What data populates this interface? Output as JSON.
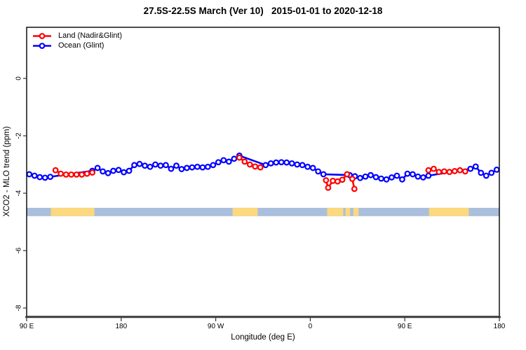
{
  "chart_data": {
    "type": "line",
    "title": "27.5S-22.5S March (Ver 10)   2015-01-01 to 2020-12-18",
    "xlabel": "Longitude (deg E)",
    "ylabel": "XCO2 - MLO trend (ppm)",
    "x_axis": {
      "range": [
        90,
        540
      ],
      "ticks": [
        90,
        180,
        270,
        360,
        450,
        540
      ],
      "tick_labels": [
        "90 E",
        "180",
        "90 W",
        "0",
        "90 E",
        "180"
      ],
      "note": "longitude wraps eastward: 90E to 180 to 90W to 0 to 90E to 180"
    },
    "y_axis": {
      "range": [
        -8.3,
        1.8
      ],
      "ticks": [
        0,
        -2,
        -4,
        -6,
        -8
      ],
      "tick_labels": [
        "0",
        "-2",
        "-4",
        "-6",
        "-8"
      ]
    },
    "legend": {
      "position": "top-left",
      "entries": [
        {
          "label": "Land (Nadir&Glint)",
          "color": "#FF0000"
        },
        {
          "label": "Ocean (Glint)",
          "color": "#0000FF"
        }
      ]
    },
    "series": [
      {
        "name": "Land (Nadir&Glint)",
        "color": "#FF0000",
        "marker": "open-circle",
        "segments": [
          [
            [
              117.5,
              -3.2
            ],
            [
              122.5,
              -3.32
            ],
            [
              127.5,
              -3.35
            ],
            [
              132.5,
              -3.35
            ],
            [
              137.5,
              -3.35
            ],
            [
              142.5,
              -3.35
            ],
            [
              147.5,
              -3.32
            ],
            [
              152.5,
              -3.28
            ]
          ],
          [
            [
              292.5,
              -2.76
            ],
            [
              297.5,
              -2.9
            ],
            [
              302.5,
              -3.0
            ],
            [
              307.5,
              -3.07
            ],
            [
              312.5,
              -3.1
            ]
          ],
          [
            [
              375,
              -3.55
            ],
            [
              377,
              -3.81
            ],
            [
              381.5,
              -3.57
            ],
            [
              386,
              -3.59
            ],
            [
              390.5,
              -3.53
            ],
            [
              395,
              -3.34
            ],
            [
              400,
              -3.5
            ],
            [
              402,
              -3.85
            ]
          ],
          [
            [
              472.5,
              -3.2
            ],
            [
              477.5,
              -3.15
            ],
            [
              482.5,
              -3.26
            ],
            [
              487.5,
              -3.24
            ],
            [
              492.5,
              -3.26
            ],
            [
              497.5,
              -3.23
            ],
            [
              502.5,
              -3.2
            ],
            [
              507.5,
              -3.24
            ]
          ]
        ]
      },
      {
        "name": "Ocean (Glint)",
        "color": "#0000FF",
        "marker": "open-circle",
        "segments": [
          [
            [
              92.5,
              -3.34
            ],
            [
              97.5,
              -3.39
            ],
            [
              102.5,
              -3.44
            ],
            [
              107.5,
              -3.46
            ],
            [
              112.5,
              -3.43
            ],
            [
              152.5,
              -3.22
            ],
            [
              157.5,
              -3.12
            ],
            [
              162.5,
              -3.24
            ],
            [
              167.5,
              -3.3
            ],
            [
              172.5,
              -3.22
            ],
            [
              177.5,
              -3.19
            ],
            [
              182.5,
              -3.27
            ],
            [
              187.5,
              -3.22
            ],
            [
              192.5,
              -3.02
            ],
            [
              197.5,
              -2.98
            ],
            [
              202.5,
              -3.04
            ],
            [
              207.5,
              -3.08
            ],
            [
              212.5,
              -3.0
            ],
            [
              217.5,
              -3.04
            ],
            [
              222.5,
              -3.02
            ],
            [
              227.5,
              -3.15
            ],
            [
              232.5,
              -3.04
            ],
            [
              237.5,
              -3.16
            ],
            [
              242.5,
              -3.12
            ],
            [
              247.5,
              -3.1
            ],
            [
              252.5,
              -3.08
            ],
            [
              257.5,
              -3.1
            ],
            [
              262.5,
              -3.08
            ],
            [
              267.5,
              -3.02
            ],
            [
              272.5,
              -2.92
            ],
            [
              277.5,
              -2.85
            ],
            [
              282.5,
              -2.9
            ],
            [
              287.5,
              -2.8
            ],
            [
              292.5,
              -2.69
            ],
            [
              317.5,
              -3.02
            ],
            [
              322.5,
              -2.96
            ],
            [
              327.5,
              -2.93
            ],
            [
              332.5,
              -2.92
            ],
            [
              337.5,
              -2.93
            ],
            [
              342.5,
              -2.96
            ],
            [
              347.5,
              -3.0
            ],
            [
              352.5,
              -3.02
            ],
            [
              357.5,
              -3.08
            ],
            [
              362.5,
              -3.12
            ],
            [
              367.5,
              -3.24
            ],
            [
              372.5,
              -3.34
            ],
            [
              397.5,
              -3.37
            ],
            [
              402.5,
              -3.41
            ],
            [
              407.5,
              -3.47
            ],
            [
              412.5,
              -3.42
            ],
            [
              417.5,
              -3.37
            ],
            [
              422.5,
              -3.44
            ],
            [
              427.5,
              -3.49
            ],
            [
              432.5,
              -3.52
            ],
            [
              437.5,
              -3.45
            ],
            [
              442.5,
              -3.39
            ],
            [
              447.5,
              -3.52
            ],
            [
              452.5,
              -3.32
            ],
            [
              457.5,
              -3.34
            ],
            [
              462.5,
              -3.42
            ],
            [
              467.5,
              -3.45
            ],
            [
              472.5,
              -3.39
            ],
            [
              512.5,
              -3.15
            ],
            [
              517.5,
              -3.07
            ],
            [
              522.5,
              -3.29
            ],
            [
              527.5,
              -3.39
            ],
            [
              532.5,
              -3.29
            ],
            [
              537.5,
              -3.18
            ]
          ]
        ]
      }
    ],
    "land_ocean_strip": {
      "y_top": -4.51,
      "y_bottom": -4.8,
      "ocean_color": "#AABFDC",
      "land_color": "#FCD87E",
      "x_range": [
        90,
        540
      ],
      "land_patches": [
        [
          113,
          154.5
        ],
        [
          286,
          310
        ],
        [
          376,
          391.5
        ],
        [
          393.5,
          398
        ],
        [
          401,
          406
        ],
        [
          473,
          511
        ]
      ]
    }
  }
}
